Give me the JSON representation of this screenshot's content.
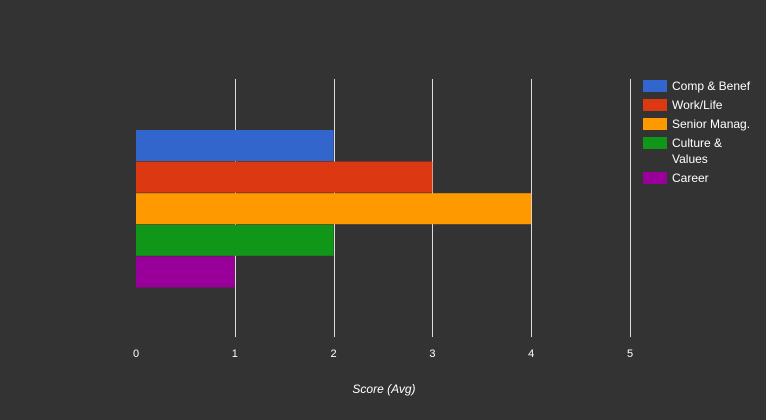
{
  "chart_data": {
    "type": "bar",
    "orientation": "horizontal",
    "title": "",
    "xlabel": "Score (Avg)",
    "ylabel": "",
    "xlim": [
      0,
      5
    ],
    "x_ticks": [
      "0",
      "1",
      "2",
      "3",
      "4",
      "5"
    ],
    "grid": "vertical",
    "legend_position": "right",
    "series": [
      {
        "name": "Comp & Benef",
        "value": 2,
        "color": "#3366cc"
      },
      {
        "name": "Work/Life",
        "value": 3,
        "color": "#dc3912"
      },
      {
        "name": "Senior Manag.",
        "value": 4,
        "color": "#ff9900"
      },
      {
        "name": "Culture & Values",
        "legend_lines": [
          "Culture &",
          "Values"
        ],
        "value": 2,
        "color": "#109618"
      },
      {
        "name": "Career",
        "value": 1,
        "color": "#990099"
      }
    ]
  },
  "colors": {
    "background": "#333333",
    "gridline": "#dddddd",
    "text": "#ffffff"
  }
}
